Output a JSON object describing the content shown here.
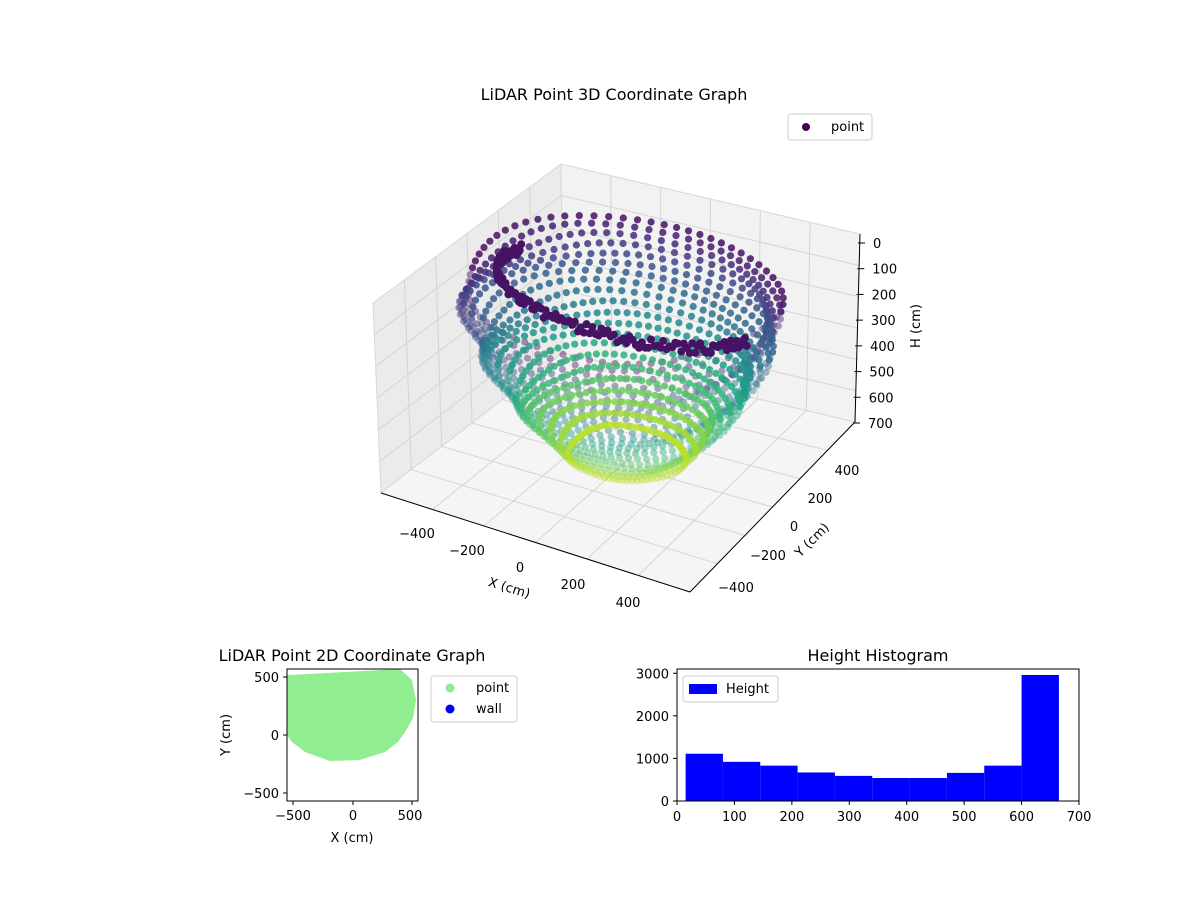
{
  "chart_data": [
    {
      "type": "scatter3d",
      "title": "LiDAR Point 3D Coordinate Graph",
      "xlabel": "X (cm)",
      "ylabel": "Y (cm)",
      "zlabel": "H (cm)",
      "xlim": [
        -550,
        550
      ],
      "ylim": [
        -550,
        550
      ],
      "zlim": [
        700,
        0
      ],
      "xticks": [
        "−400",
        "−200",
        "0",
        "200",
        "400"
      ],
      "yticks": [
        "−400",
        "−200",
        "0",
        "200",
        "400"
      ],
      "zticks": [
        "0",
        "100",
        "200",
        "300",
        "400",
        "500",
        "600",
        "700"
      ],
      "legend": [
        "point"
      ],
      "legend_position": "top-right",
      "colormap": "viridis",
      "marker_color": "#440154",
      "grid": true
    },
    {
      "type": "scatter",
      "title": "LiDAR Point 2D Coordinate Graph",
      "xlabel": "X (cm)",
      "ylabel": "Y (cm)",
      "xlim": [
        -550,
        550
      ],
      "ylim": [
        -550,
        550
      ],
      "xticks": [
        "−500",
        "0",
        "500"
      ],
      "yticks": [
        "−500",
        "0",
        "500"
      ],
      "series": [
        {
          "name": "point",
          "color": "#90ee90"
        },
        {
          "name": "wall",
          "color": "#0000ff"
        }
      ],
      "legend_position": "outside-right",
      "grid": false
    },
    {
      "type": "bar",
      "title": "Height Histogram",
      "xlim": [
        0,
        700
      ],
      "ylim": [
        0,
        3100
      ],
      "xticks": [
        "0",
        "100",
        "200",
        "300",
        "400",
        "500",
        "600",
        "700"
      ],
      "yticks": [
        "0",
        "1000",
        "2000",
        "3000"
      ],
      "bin_edges": [
        15,
        80,
        145,
        210,
        275,
        340,
        405,
        470,
        535,
        600,
        665
      ],
      "values": [
        1110,
        920,
        830,
        670,
        590,
        540,
        540,
        660,
        830,
        2960
      ],
      "series_name": "Height",
      "color": "#0000ff",
      "legend_position": "top-left",
      "grid": false
    }
  ]
}
